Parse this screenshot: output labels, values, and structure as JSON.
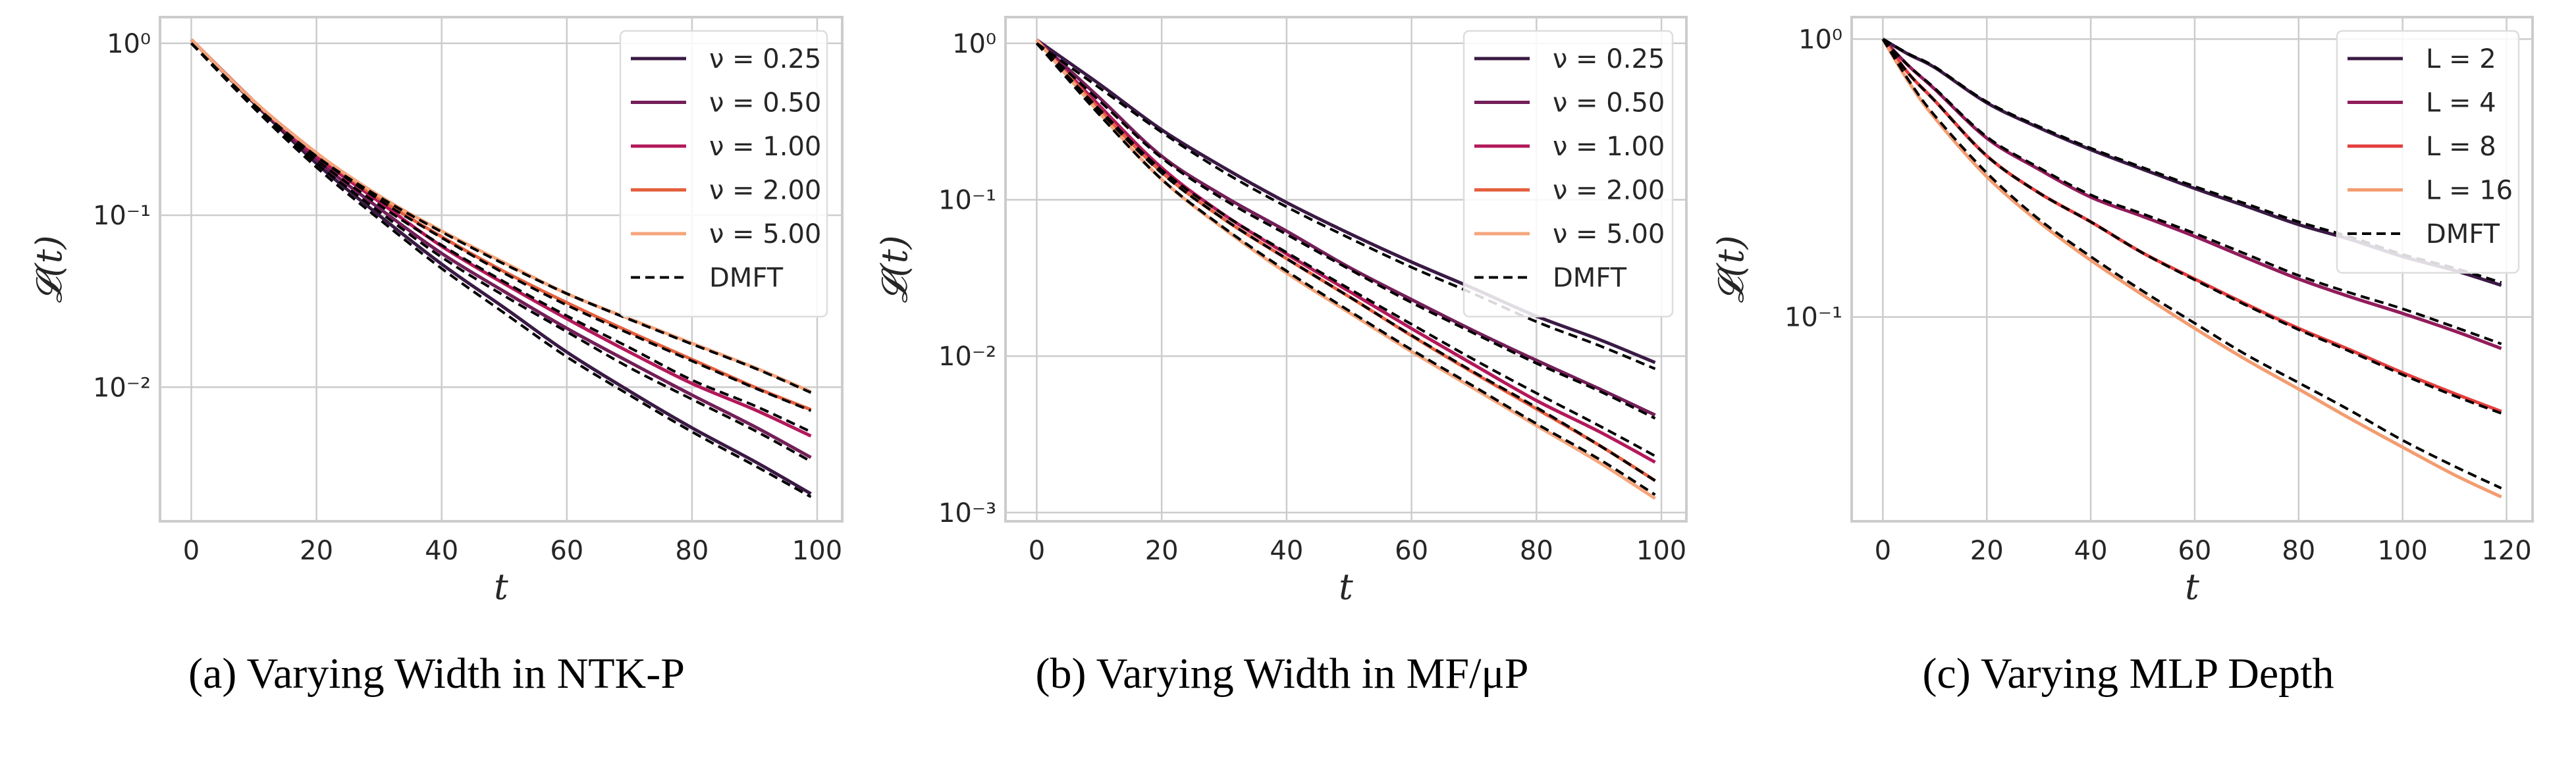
{
  "chart_data": [
    {
      "type": "line",
      "caption": "(a)  Varying Width in NTK-P",
      "xlabel": "t",
      "ylabel": "𝓛(t)",
      "yscale": "log",
      "xlim": [
        -5,
        104
      ],
      "ylim": [
        0.00166,
        1.42
      ],
      "xticks": [
        0,
        20,
        40,
        60,
        80,
        100
      ],
      "xtick_labels": [
        "0",
        "20",
        "40",
        "60",
        "80",
        "100"
      ],
      "yticks": [
        1,
        0.1,
        0.01
      ],
      "ytick_labels": [
        "10⁰",
        "10⁻¹",
        "10⁻²"
      ],
      "grid": true,
      "legend_position": "top-right",
      "x": [
        0,
        10,
        20,
        30,
        40,
        50,
        60,
        70,
        80,
        90,
        99
      ],
      "series": [
        {
          "name": "ν = 0.25",
          "color": "#3a1a44",
          "style": "solid",
          "values": [
            1.05,
            0.45,
            0.2,
            0.1,
            0.052,
            0.029,
            0.016,
            0.0095,
            0.0058,
            0.0037,
            0.0024
          ]
        },
        {
          "name": "ν = 0.50",
          "color": "#731f58",
          "style": "solid",
          "values": [
            1.05,
            0.46,
            0.21,
            0.11,
            0.06,
            0.036,
            0.022,
            0.014,
            0.009,
            0.0059,
            0.0039
          ]
        },
        {
          "name": "ν = 1.00",
          "color": "#b3185a",
          "style": "solid",
          "values": [
            1.05,
            0.46,
            0.22,
            0.12,
            0.066,
            0.04,
            0.025,
            0.016,
            0.0105,
            0.0074,
            0.0052
          ]
        },
        {
          "name": "ν = 2.00",
          "color": "#e5603f",
          "style": "solid",
          "values": [
            1.05,
            0.46,
            0.23,
            0.125,
            0.075,
            0.047,
            0.031,
            0.021,
            0.0145,
            0.01,
            0.0074
          ]
        },
        {
          "name": "ν = 5.00",
          "color": "#f5a57c",
          "style": "solid",
          "values": [
            1.05,
            0.46,
            0.23,
            0.13,
            0.081,
            0.053,
            0.035,
            0.025,
            0.018,
            0.013,
            0.0094
          ]
        },
        {
          "name": "DMFT",
          "color": "#000000",
          "style": "dashed",
          "values": [
            1.0,
            0.42,
            0.19,
            0.095,
            0.049,
            0.027,
            0.015,
            0.009,
            0.0055,
            0.0035,
            0.0023
          ]
        },
        {
          "name": "",
          "color": "#000000",
          "style": "dashed",
          "values": [
            1.0,
            0.43,
            0.2,
            0.105,
            0.057,
            0.034,
            0.021,
            0.013,
            0.0085,
            0.0056,
            0.0037
          ]
        },
        {
          "name": "",
          "color": "#000000",
          "style": "dashed",
          "values": [
            1.0,
            0.44,
            0.21,
            0.115,
            0.067,
            0.041,
            0.026,
            0.017,
            0.011,
            0.0078,
            0.0055
          ]
        },
        {
          "name": "",
          "color": "#000000",
          "style": "dashed",
          "values": [
            1.0,
            0.44,
            0.22,
            0.123,
            0.074,
            0.046,
            0.03,
            0.0205,
            0.0142,
            0.0099,
            0.0073
          ]
        },
        {
          "name": "",
          "color": "#000000",
          "style": "dashed",
          "values": [
            1.0,
            0.44,
            0.22,
            0.128,
            0.08,
            0.052,
            0.035,
            0.0248,
            0.0178,
            0.0129,
            0.0093
          ]
        }
      ]
    },
    {
      "type": "line",
      "caption": "(b)  Varying Width in MF/μP",
      "xlabel": "t",
      "ylabel": "𝓛(t)",
      "yscale": "log",
      "xlim": [
        -5,
        104
      ],
      "ylim": [
        0.00088,
        1.47
      ],
      "xticks": [
        0,
        20,
        40,
        60,
        80,
        100
      ],
      "xtick_labels": [
        "0",
        "20",
        "40",
        "60",
        "80",
        "100"
      ],
      "yticks": [
        1,
        0.1,
        0.01,
        0.001
      ],
      "ytick_labels": [
        "10⁰",
        "10⁻¹",
        "10⁻²",
        "10⁻³"
      ],
      "grid": true,
      "legend_position": "top-right",
      "x": [
        0,
        10,
        20,
        30,
        40,
        50,
        60,
        70,
        80,
        90,
        99
      ],
      "series": [
        {
          "name": "ν = 0.25",
          "color": "#3a1a44",
          "style": "solid",
          "values": [
            1.05,
            0.55,
            0.28,
            0.16,
            0.096,
            0.061,
            0.04,
            0.027,
            0.018,
            0.0128,
            0.0091
          ]
        },
        {
          "name": "ν = 0.50",
          "color": "#731f58",
          "style": "solid",
          "values": [
            1.05,
            0.45,
            0.19,
            0.105,
            0.063,
            0.037,
            0.023,
            0.0145,
            0.0094,
            0.0062,
            0.0042
          ]
        },
        {
          "name": "ν = 1.00",
          "color": "#b3185a",
          "style": "solid",
          "values": [
            1.05,
            0.4,
            0.16,
            0.08,
            0.045,
            0.026,
            0.015,
            0.0088,
            0.0052,
            0.0033,
            0.0021
          ]
        },
        {
          "name": "ν = 2.00",
          "color": "#e5603f",
          "style": "solid",
          "values": [
            1.05,
            0.38,
            0.15,
            0.075,
            0.042,
            0.024,
            0.0135,
            0.0078,
            0.0046,
            0.0027,
            0.0016
          ]
        },
        {
          "name": "ν = 5.00",
          "color": "#f5a57c",
          "style": "solid",
          "values": [
            1.05,
            0.36,
            0.135,
            0.065,
            0.034,
            0.019,
            0.0107,
            0.0062,
            0.0036,
            0.0021,
            0.00123
          ]
        },
        {
          "name": "DMFT",
          "color": "#000000",
          "style": "dashed",
          "values": [
            1.0,
            0.52,
            0.27,
            0.15,
            0.09,
            0.057,
            0.037,
            0.025,
            0.0166,
            0.0117,
            0.0083
          ]
        },
        {
          "name": "",
          "color": "#000000",
          "style": "dashed",
          "values": [
            1.0,
            0.43,
            0.185,
            0.1,
            0.06,
            0.036,
            0.022,
            0.014,
            0.009,
            0.006,
            0.004
          ]
        },
        {
          "name": "",
          "color": "#000000",
          "style": "dashed",
          "values": [
            1.0,
            0.38,
            0.155,
            0.08,
            0.046,
            0.027,
            0.016,
            0.0095,
            0.0058,
            0.0036,
            0.0023
          ]
        },
        {
          "name": "",
          "color": "#000000",
          "style": "dashed",
          "values": [
            1.0,
            0.37,
            0.148,
            0.075,
            0.042,
            0.024,
            0.0136,
            0.0079,
            0.0047,
            0.0027,
            0.0016
          ]
        },
        {
          "name": "",
          "color": "#000000",
          "style": "dashed",
          "values": [
            1.0,
            0.35,
            0.135,
            0.066,
            0.035,
            0.0195,
            0.011,
            0.0064,
            0.0037,
            0.0022,
            0.0013
          ]
        }
      ]
    },
    {
      "type": "line",
      "caption": "(c)  Varying MLP Depth",
      "xlabel": "t",
      "ylabel": "𝓛(t)",
      "yscale": "log",
      "xlim": [
        -6,
        125
      ],
      "ylim": [
        0.0184,
        1.2
      ],
      "xticks": [
        0,
        20,
        40,
        60,
        80,
        100,
        120
      ],
      "xtick_labels": [
        "0",
        "20",
        "40",
        "60",
        "80",
        "100",
        "120"
      ],
      "yticks": [
        1,
        0.1
      ],
      "ytick_labels": [
        "10⁰",
        "10⁻¹"
      ],
      "grid": true,
      "legend_position": "top-right",
      "x": [
        0,
        5,
        10,
        20,
        30,
        40,
        50,
        60,
        70,
        80,
        90,
        100,
        110,
        119
      ],
      "series": [
        {
          "name": "L = 2",
          "color": "#3a1a44",
          "style": "solid",
          "values": [
            1.0,
            0.88,
            0.79,
            0.59,
            0.48,
            0.4,
            0.34,
            0.29,
            0.25,
            0.215,
            0.19,
            0.165,
            0.147,
            0.13
          ]
        },
        {
          "name": "L = 4",
          "color": "#921c5b",
          "style": "solid",
          "values": [
            1.0,
            0.8,
            0.66,
            0.44,
            0.34,
            0.27,
            0.23,
            0.195,
            0.163,
            0.137,
            0.118,
            0.103,
            0.089,
            0.077
          ]
        },
        {
          "name": "L = 8",
          "color": "#e43d3d",
          "style": "solid",
          "values": [
            1.0,
            0.75,
            0.6,
            0.38,
            0.28,
            0.22,
            0.17,
            0.137,
            0.111,
            0.091,
            0.076,
            0.063,
            0.053,
            0.0457
          ]
        },
        {
          "name": "L = 16",
          "color": "#f39c70",
          "style": "solid",
          "values": [
            1.0,
            0.7,
            0.52,
            0.32,
            0.22,
            0.16,
            0.12,
            0.091,
            0.07,
            0.055,
            0.043,
            0.034,
            0.027,
            0.0225
          ]
        },
        {
          "name": "DMFT",
          "color": "#000000",
          "style": "dashed",
          "values": [
            1.0,
            0.885,
            0.795,
            0.595,
            0.485,
            0.405,
            0.345,
            0.295,
            0.255,
            0.22,
            0.194,
            0.168,
            0.15,
            0.133
          ]
        },
        {
          "name": "",
          "color": "#000000",
          "style": "dashed",
          "values": [
            1.0,
            0.8,
            0.665,
            0.445,
            0.345,
            0.275,
            0.235,
            0.2,
            0.168,
            0.141,
            0.122,
            0.107,
            0.092,
            0.08
          ]
        },
        {
          "name": "",
          "color": "#000000",
          "style": "dashed",
          "values": [
            1.0,
            0.75,
            0.6,
            0.38,
            0.28,
            0.22,
            0.17,
            0.136,
            0.11,
            0.09,
            0.075,
            0.062,
            0.052,
            0.045
          ]
        },
        {
          "name": "",
          "color": "#000000",
          "style": "dashed",
          "values": [
            1.0,
            0.71,
            0.53,
            0.33,
            0.225,
            0.165,
            0.124,
            0.095,
            0.073,
            0.058,
            0.046,
            0.036,
            0.029,
            0.0242
          ]
        }
      ]
    }
  ]
}
